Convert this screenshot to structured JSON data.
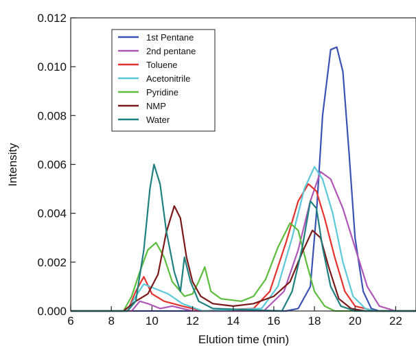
{
  "chart_data": {
    "type": "line",
    "title": "",
    "xlabel": "Elution time (min)",
    "ylabel": "Intensity",
    "xlim": [
      6,
      23
    ],
    "ylim": [
      0,
      0.012
    ],
    "xticks": [
      "6",
      "8",
      "10",
      "12",
      "14",
      "16",
      "18",
      "20",
      "22"
    ],
    "yticks": [
      "0.000",
      "0.002",
      "0.004",
      "0.006",
      "0.008",
      "0.010",
      "0.012"
    ],
    "legend_position": "top-left",
    "grid": false,
    "series": [
      {
        "name": "1st Pentane",
        "color": "#3a52b4",
        "points": [
          [
            6,
            0
          ],
          [
            8,
            0
          ],
          [
            16.6,
            0
          ],
          [
            17.2,
            0.0001
          ],
          [
            17.8,
            0.001
          ],
          [
            18.1,
            0.004
          ],
          [
            18.4,
            0.008
          ],
          [
            18.8,
            0.0107
          ],
          [
            19.1,
            0.0108
          ],
          [
            19.4,
            0.0098
          ],
          [
            19.7,
            0.0065
          ],
          [
            20.0,
            0.003
          ],
          [
            20.4,
            0.0008
          ],
          [
            20.8,
            0.0001
          ],
          [
            21.2,
            0
          ],
          [
            23,
            0
          ]
        ]
      },
      {
        "name": "2nd pentane",
        "color": "#b055b8",
        "points": [
          [
            6,
            0
          ],
          [
            9.0,
            0
          ],
          [
            9.4,
            0.0004
          ],
          [
            9.8,
            0.0003
          ],
          [
            10.4,
            0.0001
          ],
          [
            11.0,
            0.0002
          ],
          [
            12,
            0
          ],
          [
            15.5,
            0
          ],
          [
            16.5,
            0.0008
          ],
          [
            17.2,
            0.0025
          ],
          [
            17.8,
            0.0045
          ],
          [
            18.3,
            0.0057
          ],
          [
            18.8,
            0.0054
          ],
          [
            19.4,
            0.0042
          ],
          [
            20.0,
            0.0026
          ],
          [
            20.6,
            0.001
          ],
          [
            21.2,
            0.0002
          ],
          [
            22,
            0
          ],
          [
            23,
            0
          ]
        ]
      },
      {
        "name": "Toluene",
        "color": "#e6322d",
        "points": [
          [
            6,
            0
          ],
          [
            8.8,
            0
          ],
          [
            9.2,
            0.0008
          ],
          [
            9.6,
            0.0014
          ],
          [
            10.0,
            0.0007
          ],
          [
            10.6,
            0.0004
          ],
          [
            11.5,
            0.0002
          ],
          [
            12.5,
            0
          ],
          [
            15.0,
            0.0001
          ],
          [
            15.8,
            0.0008
          ],
          [
            16.6,
            0.0028
          ],
          [
            17.2,
            0.0045
          ],
          [
            17.7,
            0.0052
          ],
          [
            18.1,
            0.0049
          ],
          [
            18.5,
            0.0038
          ],
          [
            19.0,
            0.0022
          ],
          [
            19.5,
            0.0008
          ],
          [
            20.0,
            0.0002
          ],
          [
            21,
            0
          ],
          [
            23,
            0
          ]
        ]
      },
      {
        "name": "Acetonitrile",
        "color": "#5ac8d8",
        "points": [
          [
            6,
            0
          ],
          [
            8.8,
            0
          ],
          [
            9.2,
            0.0006
          ],
          [
            9.6,
            0.0011
          ],
          [
            10.2,
            0.0009
          ],
          [
            10.8,
            0.0007
          ],
          [
            11.5,
            0.0003
          ],
          [
            12.5,
            0
          ],
          [
            15.4,
            0.0001
          ],
          [
            16.2,
            0.001
          ],
          [
            16.9,
            0.003
          ],
          [
            17.5,
            0.005
          ],
          [
            18.0,
            0.0059
          ],
          [
            18.4,
            0.0054
          ],
          [
            18.9,
            0.004
          ],
          [
            19.4,
            0.002
          ],
          [
            19.9,
            0.0006
          ],
          [
            20.5,
            0.0001
          ],
          [
            21,
            0
          ],
          [
            23,
            0
          ]
        ]
      },
      {
        "name": "Pyridine",
        "color": "#5cbc3c",
        "points": [
          [
            6,
            0
          ],
          [
            8.6,
            0
          ],
          [
            9.0,
            0.0006
          ],
          [
            9.4,
            0.0016
          ],
          [
            9.8,
            0.0025
          ],
          [
            10.2,
            0.0028
          ],
          [
            10.6,
            0.0022
          ],
          [
            11.0,
            0.0012
          ],
          [
            11.6,
            0.0006
          ],
          [
            12.0,
            0.0007
          ],
          [
            12.3,
            0.0012
          ],
          [
            12.6,
            0.0018
          ],
          [
            12.9,
            0.0008
          ],
          [
            13.4,
            0.0005
          ],
          [
            14.4,
            0.0004
          ],
          [
            15.0,
            0.0006
          ],
          [
            15.6,
            0.0013
          ],
          [
            16.2,
            0.0026
          ],
          [
            16.8,
            0.0036
          ],
          [
            17.2,
            0.0033
          ],
          [
            17.6,
            0.002
          ],
          [
            18.0,
            0.0008
          ],
          [
            18.5,
            0.0002
          ],
          [
            19,
            0
          ],
          [
            23,
            0
          ]
        ]
      },
      {
        "name": "NMP",
        "color": "#7a1818",
        "points": [
          [
            6,
            0
          ],
          [
            8.6,
            0
          ],
          [
            9.2,
            0.0004
          ],
          [
            9.8,
            0.0007
          ],
          [
            10.3,
            0.0015
          ],
          [
            10.7,
            0.0032
          ],
          [
            11.1,
            0.0043
          ],
          [
            11.4,
            0.0038
          ],
          [
            11.7,
            0.0022
          ],
          [
            12.0,
            0.0012
          ],
          [
            12.4,
            0.0006
          ],
          [
            13.0,
            0.0003
          ],
          [
            14.0,
            0.0002
          ],
          [
            15.0,
            0.0003
          ],
          [
            16.0,
            0.0006
          ],
          [
            16.8,
            0.0012
          ],
          [
            17.4,
            0.0024
          ],
          [
            17.9,
            0.0033
          ],
          [
            18.3,
            0.003
          ],
          [
            18.7,
            0.0018
          ],
          [
            19.2,
            0.0005
          ],
          [
            19.8,
            0.0001
          ],
          [
            20.5,
            0
          ],
          [
            23,
            0
          ]
        ]
      },
      {
        "name": "Water",
        "color": "#1f8080",
        "points": [
          [
            6,
            0
          ],
          [
            8.8,
            0
          ],
          [
            9.2,
            0.0004
          ],
          [
            9.6,
            0.0025
          ],
          [
            9.9,
            0.005
          ],
          [
            10.1,
            0.006
          ],
          [
            10.4,
            0.0052
          ],
          [
            10.7,
            0.0033
          ],
          [
            11.1,
            0.0016
          ],
          [
            11.4,
            0.0008
          ],
          [
            11.6,
            0.0022
          ],
          [
            11.9,
            0.0012
          ],
          [
            12.3,
            0.0004
          ],
          [
            13,
            0.0001
          ],
          [
            16.4,
            0
          ],
          [
            16.9,
            0.0008
          ],
          [
            17.4,
            0.0026
          ],
          [
            17.8,
            0.0045
          ],
          [
            18.1,
            0.0042
          ],
          [
            18.4,
            0.0026
          ],
          [
            18.8,
            0.001
          ],
          [
            19.3,
            0.0002
          ],
          [
            20,
            0
          ],
          [
            23,
            0
          ]
        ]
      }
    ]
  }
}
